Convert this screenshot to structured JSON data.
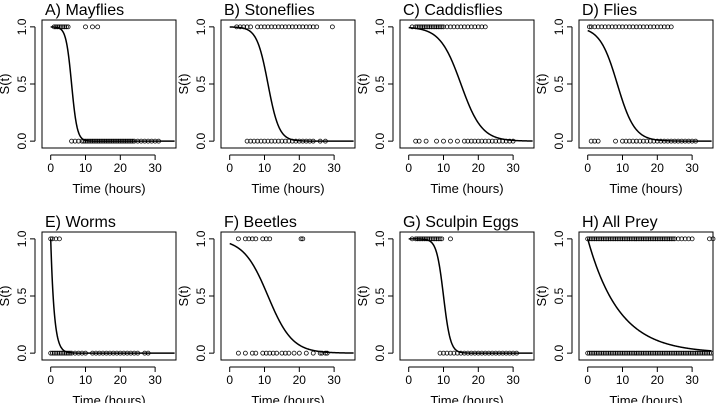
{
  "chart_data": [
    {
      "type": "scatter",
      "title": "A) Mayflies",
      "xlabel": "Time (hours)",
      "ylabel": "S(t)",
      "xlim": [
        -2.5,
        36
      ],
      "ylim": [
        -0.06,
        1.06
      ],
      "xticks": [
        0,
        10,
        20,
        30
      ],
      "yticks": [
        0.0,
        0.5,
        1.0
      ],
      "curve": {
        "model": "logistic",
        "midpoint": 6.0,
        "scale": 0.8
      },
      "points_survived": [
        1.0,
        1.5,
        2.0,
        2.5,
        3.0,
        3.5,
        4.0,
        4.5,
        5.0,
        10.0,
        12.0,
        13.5
      ],
      "points_consumed": [
        6,
        7,
        8,
        9,
        9.5,
        10,
        10.5,
        11,
        11.5,
        12,
        12.5,
        13,
        13.5,
        14,
        14.5,
        15,
        15.5,
        16,
        16.5,
        17,
        17.5,
        18,
        18.5,
        19,
        19.5,
        20,
        20.5,
        21,
        21.5,
        22,
        22.5,
        23,
        23.5,
        24,
        25,
        26,
        27,
        28,
        29,
        30,
        31
      ]
    },
    {
      "type": "scatter",
      "title": "B) Stoneflies",
      "xlabel": "Time (hours)",
      "ylabel": "S(t)",
      "xlim": [
        -2.5,
        36
      ],
      "ylim": [
        -0.06,
        1.06
      ],
      "xticks": [
        0,
        10,
        20,
        30
      ],
      "yticks": [
        0.0,
        0.5,
        1.0
      ],
      "curve": {
        "model": "logistic",
        "midpoint": 11.0,
        "scale": 1.6
      },
      "points_survived": [
        2,
        3,
        4,
        5,
        6,
        8,
        9,
        10,
        11,
        12,
        13,
        14,
        15,
        16,
        17,
        18,
        19,
        20,
        21,
        22,
        23,
        24,
        25,
        29.5
      ],
      "points_consumed": [
        5,
        6,
        7,
        8,
        9,
        10,
        11,
        12,
        13,
        14,
        15,
        16,
        17,
        18,
        19,
        20,
        21,
        22,
        23,
        24,
        26,
        27.5
      ]
    },
    {
      "type": "scatter",
      "title": "C) Caddisflies",
      "xlabel": "Time (hours)",
      "ylabel": "S(t)",
      "xlim": [
        -2.5,
        36
      ],
      "ylim": [
        -0.06,
        1.06
      ],
      "xticks": [
        0,
        10,
        20,
        30
      ],
      "yticks": [
        0.0,
        0.5,
        1.0
      ],
      "curve": {
        "model": "logistic",
        "midpoint": 15.0,
        "scale": 3.0
      },
      "points_survived": [
        1,
        2,
        2.5,
        3,
        3.5,
        4,
        4.5,
        5,
        5.5,
        6,
        6.5,
        7,
        7.5,
        8,
        8.5,
        9,
        9.5,
        10,
        11,
        12,
        13,
        14,
        15,
        16,
        17,
        18,
        19,
        20,
        21,
        22
      ],
      "points_consumed": [
        2,
        3,
        5,
        8,
        10,
        12,
        14,
        16,
        17,
        18,
        19,
        20,
        21,
        22,
        23,
        24,
        25,
        26,
        27,
        28,
        29,
        30
      ]
    },
    {
      "type": "scatter",
      "title": "D) Flies",
      "xlabel": "Time (hours)",
      "ylabel": "S(t)",
      "xlim": [
        -2.5,
        36
      ],
      "ylim": [
        -0.06,
        1.06
      ],
      "xticks": [
        0,
        10,
        20,
        30
      ],
      "yticks": [
        0.0,
        0.5,
        1.0
      ],
      "curve": {
        "model": "logistic",
        "midpoint": 8.5,
        "scale": 2.5
      },
      "points_survived": [
        0.5,
        1,
        2,
        3,
        4,
        5,
        6,
        7,
        8,
        9,
        10,
        11,
        12,
        13,
        14,
        15,
        16,
        17,
        18,
        19,
        20,
        21,
        22,
        23,
        24
      ],
      "points_consumed": [
        1,
        2,
        3,
        8,
        10,
        11,
        12,
        13,
        14,
        15,
        16,
        17,
        18,
        19,
        20,
        21,
        22,
        23,
        24,
        25,
        26,
        27,
        28,
        29,
        30,
        31
      ]
    },
    {
      "type": "scatter",
      "title": "E) Worms",
      "xlabel": "Time (hours)",
      "ylabel": "S(t)",
      "xlim": [
        -2.5,
        36
      ],
      "ylim": [
        -0.06,
        1.06
      ],
      "xticks": [
        0,
        10,
        20,
        30
      ],
      "yticks": [
        0.0,
        0.5,
        1.0
      ],
      "curve": {
        "model": "exponential",
        "rate": 1.0
      },
      "points_survived": [
        0.0,
        0.5,
        1.5,
        2.5
      ],
      "points_consumed": [
        0,
        0.5,
        1,
        1.5,
        2,
        2.5,
        3,
        3.5,
        4,
        4.5,
        5,
        5.5,
        6,
        7,
        8,
        9,
        10,
        12,
        13,
        14,
        15,
        16,
        17,
        18,
        19,
        20,
        21,
        22,
        23,
        24,
        25,
        27,
        28
      ]
    },
    {
      "type": "scatter",
      "title": "F) Beetles",
      "xlabel": "Time (hours)",
      "ylabel": "S(t)",
      "xlim": [
        -2.5,
        36
      ],
      "ylim": [
        -0.06,
        1.06
      ],
      "xticks": [
        0,
        10,
        20,
        30
      ],
      "yticks": [
        0.0,
        0.5,
        1.0
      ],
      "curve": {
        "model": "logistic",
        "midpoint": 11.0,
        "scale": 3.5
      },
      "points_survived": [
        2.5,
        4.5,
        5.5,
        6.5,
        7.5,
        9.5,
        10.5,
        11.5,
        20.5,
        21
      ],
      "points_consumed": [
        2.5,
        4.5,
        6.5,
        7.5,
        9.5,
        10.5,
        11.5,
        12.5,
        13.5,
        15,
        16,
        17,
        18.5,
        20,
        22,
        24,
        26,
        26.5,
        27.5,
        28
      ]
    },
    {
      "type": "scatter",
      "title": "G) Sculpin Eggs",
      "xlabel": "Time (hours)",
      "ylabel": "S(t)",
      "xlim": [
        -2.5,
        36
      ],
      "ylim": [
        -0.06,
        1.06
      ],
      "xticks": [
        0,
        10,
        20,
        30
      ],
      "yticks": [
        0.0,
        0.5,
        1.0
      ],
      "curve": {
        "model": "logistic",
        "midpoint": 10.0,
        "scale": 1.0
      },
      "points_survived": [
        1,
        2,
        2.5,
        3,
        3.5,
        4,
        4.5,
        5,
        5.5,
        6,
        6.5,
        7,
        7.5,
        8,
        8.5,
        9,
        9.5,
        12
      ],
      "points_consumed": [
        9,
        10,
        11,
        12,
        13,
        14,
        15,
        16,
        17,
        18,
        19,
        20,
        21,
        22,
        23,
        24,
        25,
        26,
        27,
        28,
        29,
        30,
        31
      ]
    },
    {
      "type": "scatter",
      "title": "H) All Prey",
      "xlabel": "Time (hours)",
      "ylabel": "S(t)",
      "xlim": [
        -2.5,
        36
      ],
      "ylim": [
        -0.06,
        1.06
      ],
      "xticks": [
        0,
        10,
        20,
        30
      ],
      "yticks": [
        0.0,
        0.5,
        1.0
      ],
      "curve": {
        "model": "exponential",
        "rate": 0.11
      },
      "points_survived": [
        0,
        0.5,
        1,
        1.5,
        2,
        2.5,
        3,
        3.5,
        4,
        4.5,
        5,
        5.5,
        6,
        6.5,
        7,
        7.5,
        8,
        8.5,
        9,
        9.5,
        10,
        10.5,
        11,
        11.5,
        12,
        12.5,
        13,
        13.5,
        14,
        14.5,
        15,
        15.5,
        16,
        16.5,
        17,
        17.5,
        18,
        18.5,
        19,
        19.5,
        20,
        20.5,
        21,
        21.5,
        22,
        22.5,
        23,
        23.5,
        24,
        24.5,
        25,
        26,
        27,
        28,
        29,
        30,
        35,
        36
      ],
      "points_consumed": [
        0,
        0.5,
        1,
        1.5,
        2,
        2.5,
        3,
        3.5,
        4,
        4.5,
        5,
        5.5,
        6,
        6.5,
        7,
        7.5,
        8,
        8.5,
        9,
        9.5,
        10,
        10.5,
        11,
        11.5,
        12,
        12.5,
        13,
        13.5,
        14,
        14.5,
        15,
        15.5,
        16,
        16.5,
        17,
        17.5,
        18,
        18.5,
        19,
        19.5,
        20,
        20.5,
        21,
        21.5,
        22,
        22.5,
        23,
        23.5,
        24,
        24.5,
        25,
        25.5,
        26,
        26.5,
        27,
        27.5,
        28,
        28.5,
        29,
        29.5,
        30,
        30.5,
        31,
        31.5,
        32,
        32.5,
        33,
        33.5,
        34,
        34.5,
        35,
        35.5
      ]
    }
  ]
}
